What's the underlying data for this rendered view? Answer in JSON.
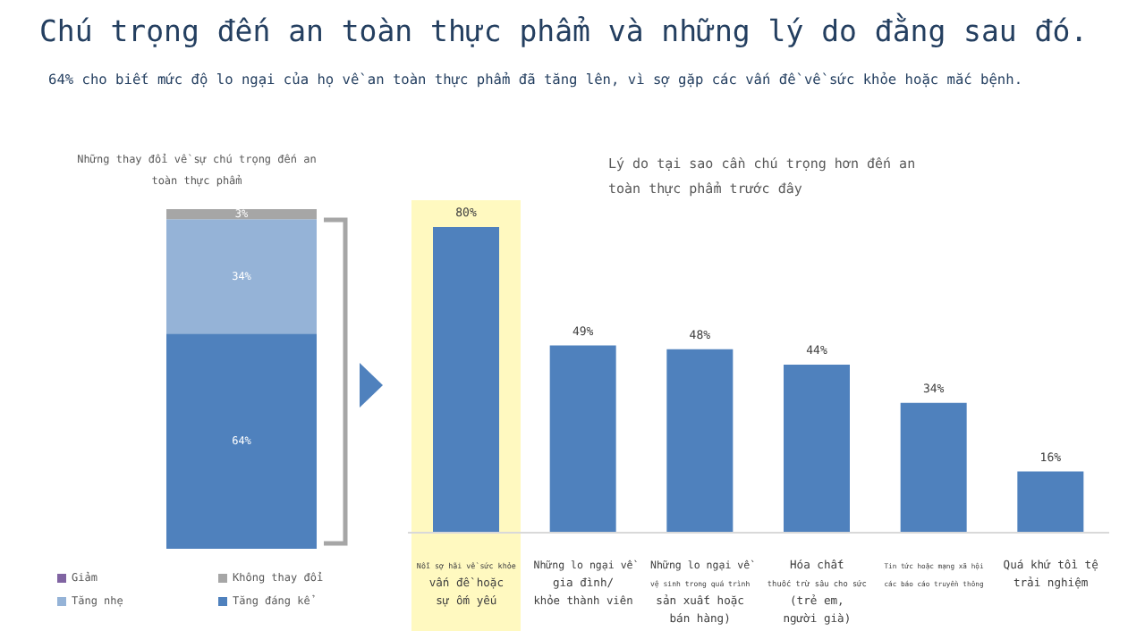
{
  "chart_data": [
    {
      "type": "bar",
      "title": "Chú trọng đến an toàn thực phẩm và những lý do đằng sau đó.",
      "subtitle": "64% cho biết mức độ lo ngại của họ về an toàn thực phẩm đã tăng lên, vì sợ gặp các vấn đề về sức khỏe hoặc mắc bệnh.",
      "annotations": [
        "Những thay đổi về sự chú trọng đến an\ntoàn thực phẩm"
      ],
      "stacked": true,
      "categories": [
        null
      ],
      "legend": "bottom",
      "series": [
        {
          "name": "Tăng đáng kể",
          "color": "#4f81bd",
          "values": [
            64
          ],
          "value_labels": [
            "64%"
          ]
        },
        {
          "name": "Tăng nhẹ",
          "color": "#95b3d7",
          "values": [
            34
          ],
          "value_labels": [
            "34%"
          ]
        },
        {
          "name": "Không thay đổi",
          "color": "#a6a6a6",
          "values": [
            3
          ],
          "value_labels": [
            "3%"
          ]
        },
        {
          "name": "Giảm",
          "color": "#8064a2",
          "values": [
            null
          ],
          "value_labels": [
            null
          ]
        }
      ]
    },
    {
      "type": "bar",
      "title": "Lý do tại sao cần chú trọng hơn đến an\ntoàn thực phẩm trước đây",
      "categories": [
        "Nỗi sợ hãi về sức khỏe\nvấn đề hoặc\nsự ốm yếu",
        "Những lo ngại về\ngia đình/\nkhỏe thành viên",
        "Những lo ngại về\nvệ sinh trong quá trình\nsản xuất hoặc\nbán hàng)",
        "Hóa chất\nthuốc trừ sâu cho sức\n(trẻ em,\nngười già)",
        "Tin tức hoặc mạng xã hội\ncác báo cáo truyền thông",
        "Quá khứ tồi tệ\ntrải nghiệm"
      ],
      "values": [
        80,
        49,
        48,
        44,
        34,
        16
      ],
      "value_labels": [
        "80%",
        "49%",
        "48%",
        "44%",
        "34%",
        "16%"
      ],
      "color": "#4f81bd",
      "bands": [
        {
          "axis": "x",
          "from": "Nỗi sợ hãi về sức khỏe\nvấn đề hoặc\nsự ốm yếu",
          "to": "Nỗi sợ hãi về sức khỏe\nvấn đề hoặc\nsự ốm yếu",
          "color": "#fff9c0"
        }
      ]
    }
  ]
}
